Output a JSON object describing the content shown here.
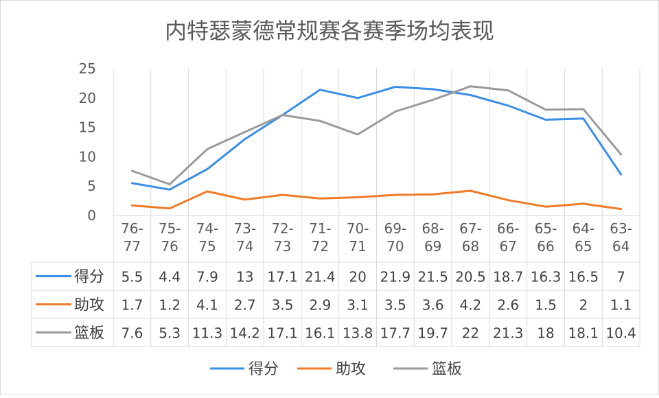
{
  "chart_data": {
    "type": "line",
    "title": "内特瑟蒙德常规赛各赛季场均表现",
    "categories": [
      "76-77",
      "75-76",
      "74-75",
      "73-74",
      "72-73",
      "71-72",
      "70-71",
      "69-70",
      "68-69",
      "67-68",
      "66-67",
      "65-66",
      "64-65",
      "63-64"
    ],
    "category_lines": [
      [
        "76-",
        "77"
      ],
      [
        "75-",
        "76"
      ],
      [
        "74-",
        "75"
      ],
      [
        "73-",
        "74"
      ],
      [
        "72-",
        "73"
      ],
      [
        "71-",
        "72"
      ],
      [
        "70-",
        "71"
      ],
      [
        "69-",
        "70"
      ],
      [
        "68-",
        "69"
      ],
      [
        "67-",
        "68"
      ],
      [
        "66-",
        "67"
      ],
      [
        "65-",
        "66"
      ],
      [
        "64-",
        "65"
      ],
      [
        "63-",
        "64"
      ]
    ],
    "series": [
      {
        "name": "得分",
        "color": "#3a8ee6",
        "values": [
          5.5,
          4.4,
          7.9,
          13,
          17.1,
          21.4,
          20,
          21.9,
          21.5,
          20.5,
          18.7,
          16.3,
          16.5,
          7
        ]
      },
      {
        "name": "助攻",
        "color": "#f07a26",
        "values": [
          1.7,
          1.2,
          4.1,
          2.7,
          3.5,
          2.9,
          3.1,
          3.5,
          3.6,
          4.2,
          2.6,
          1.5,
          2,
          1.1
        ]
      },
      {
        "name": "篮板",
        "color": "#9a9a9a",
        "values": [
          7.6,
          5.3,
          11.3,
          14.2,
          17.1,
          16.1,
          13.8,
          17.7,
          19.7,
          22,
          21.3,
          18,
          18.1,
          10.4
        ]
      }
    ],
    "ylim": [
      0,
      25
    ],
    "yticks": [
      0,
      5,
      10,
      15,
      20,
      25
    ],
    "xlabel": "",
    "ylabel": "",
    "grid": true,
    "legend": "bottom",
    "data_table": true
  }
}
